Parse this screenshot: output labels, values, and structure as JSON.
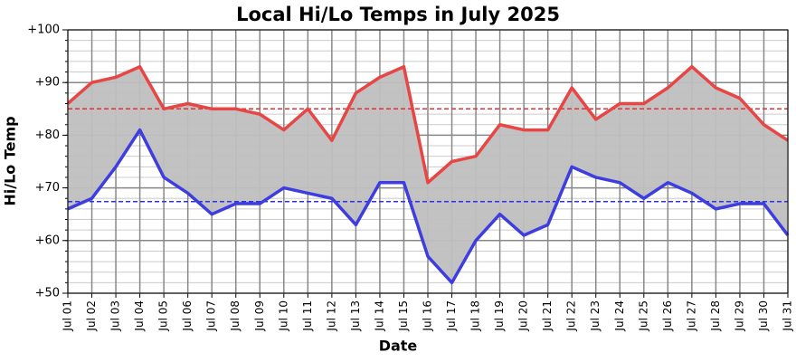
{
  "chart_data": {
    "type": "range_line",
    "title": "Local Hi/Lo Temps in July 2025",
    "x_label": "Date",
    "y_label": "Hi/Lo Temp",
    "categories": [
      "Jul 01",
      "Jul 02",
      "Jul 03",
      "Jul 04",
      "Jul 05",
      "Jul 06",
      "Jul 07",
      "Jul 08",
      "Jul 09",
      "Jul 10",
      "Jul 11",
      "Jul 12",
      "Jul 13",
      "Jul 14",
      "Jul 15",
      "Jul 16",
      "Jul 17",
      "Jul 18",
      "Jul 19",
      "Jul 20",
      "Jul 21",
      "Jul 22",
      "Jul 23",
      "Jul 24",
      "Jul 25",
      "Jul 26",
      "Jul 27",
      "Jul 28",
      "Jul 29",
      "Jul 30",
      "Jul 31"
    ],
    "series": [
      {
        "color": "#e84545",
        "values": [
          86,
          90,
          91,
          93,
          85,
          86,
          85,
          85,
          84,
          81,
          85,
          79,
          88,
          91,
          93,
          71,
          75,
          76,
          82,
          81,
          81,
          89,
          83,
          86,
          86,
          89,
          93,
          89,
          87,
          82,
          79
        ]
      },
      {
        "color": "#3d3de0",
        "values": [
          66,
          68,
          74,
          81,
          72,
          69,
          65,
          67,
          67,
          70,
          69,
          68,
          63,
          71,
          71,
          57,
          52,
          60,
          65,
          61,
          63,
          74,
          72,
          71,
          68,
          71,
          69,
          66,
          67,
          67,
          61
        ]
      }
    ],
    "fill_between_color": "#bfbfbf",
    "hlines": [
      {
        "value": 85,
        "color": "#e03030"
      },
      {
        "value": 67.4,
        "color": "#3030e0"
      }
    ],
    "ylim": [
      50,
      100
    ],
    "yticks": [
      {
        "value": 50,
        "label": "+50"
      },
      {
        "value": 60,
        "label": "+60"
      },
      {
        "value": 70,
        "label": "+70"
      },
      {
        "value": 80,
        "label": "+80"
      },
      {
        "value": 90,
        "label": "+90"
      },
      {
        "value": 100,
        "label": "+100"
      }
    ],
    "minor_grid_step": 2,
    "grid": true
  }
}
